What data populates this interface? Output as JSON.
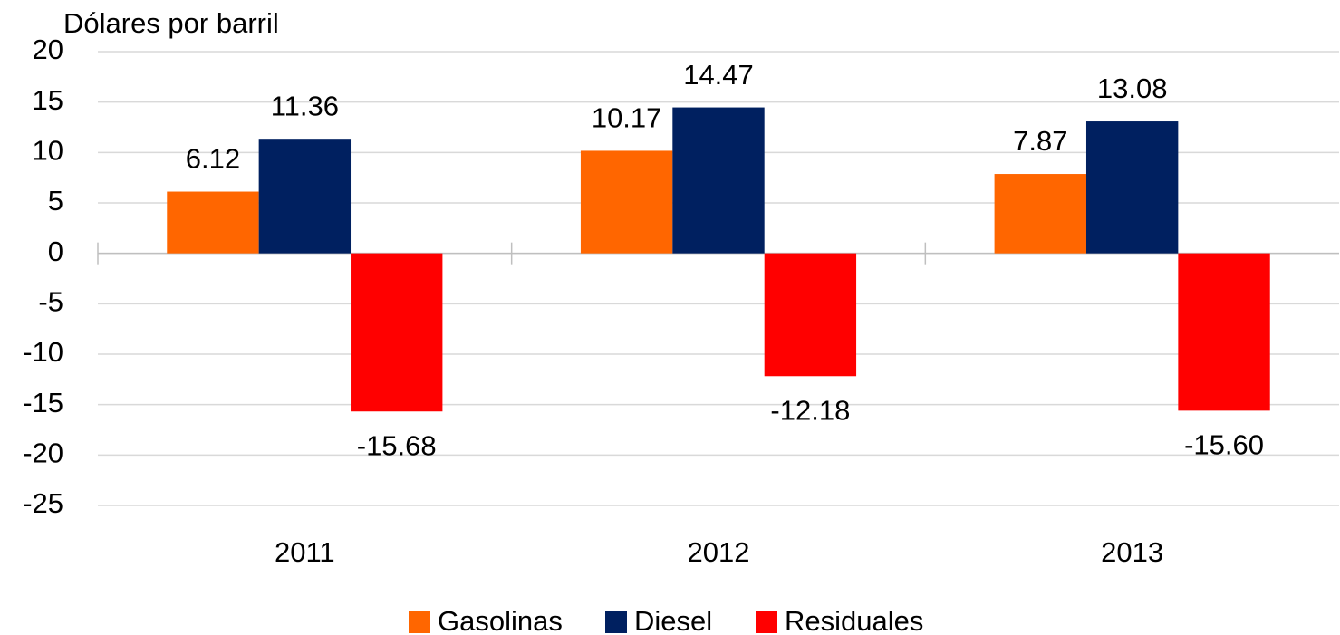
{
  "chart_data": {
    "type": "bar",
    "y_label": "Dólares por barril",
    "categories": [
      "2011",
      "2012",
      "2013"
    ],
    "series": [
      {
        "name": "Gasolinas",
        "color": "#ff6600",
        "values": [
          6.12,
          10.17,
          7.87
        ],
        "value_labels": [
          "6.12",
          "10.17",
          "7.87"
        ]
      },
      {
        "name": "Diesel",
        "color": "#002060",
        "values": [
          11.36,
          14.47,
          13.08
        ],
        "value_labels": [
          "11.36",
          "14.47",
          "13.08"
        ]
      },
      {
        "name": "Residuales",
        "color": "#ff0000",
        "values": [
          -15.68,
          -12.18,
          -15.6
        ],
        "value_labels": [
          "-15.68",
          "-12.18",
          "-15.60"
        ]
      }
    ],
    "ylim": [
      -25,
      20
    ],
    "yticks": [
      -25,
      -20,
      -15,
      -10,
      -5,
      0,
      5,
      10,
      15,
      20
    ],
    "grid": true,
    "legend": "bottom"
  }
}
